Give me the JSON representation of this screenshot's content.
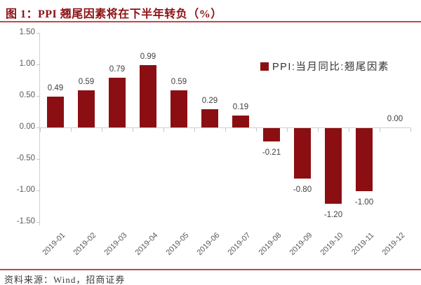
{
  "page": {
    "title": "图 1：PPI 翘尾因素将在下半年转负（%）",
    "source_note": "资料来源：Wind，招商证券"
  },
  "colors": {
    "bar": "#8b0f12",
    "title_red": "#8c1114",
    "rule_red": "#bf4a44",
    "axis_label_gray": "#595959",
    "data_label_gray": "#3f3f3f",
    "axis_line_gray": "#cfcfcf"
  },
  "chart_data": {
    "type": "bar",
    "title": "图 1：PPI 翘尾因素将在下半年转负（%）",
    "categories": [
      "2019-01",
      "2019-02",
      "2019-03",
      "2019-04",
      "2019-05",
      "2019-06",
      "2019-07",
      "2019-08",
      "2019-09",
      "2019-10",
      "2019-11",
      "2019-12"
    ],
    "series": [
      {
        "name": "PPI:当月同比:翘尾因素",
        "values": [
          0.49,
          0.59,
          0.79,
          0.99,
          0.59,
          0.29,
          0.19,
          -0.21,
          -0.8,
          -1.2,
          -1.0,
          0.0
        ]
      }
    ],
    "data_labels": [
      "0.49",
      "0.59",
      "0.79",
      "0.99",
      "0.59",
      "0.29",
      "0.19",
      "-0.21",
      "-0.80",
      "-1.20",
      "-1.00",
      "0.00"
    ],
    "xlabel": "",
    "ylabel": "",
    "ylim": [
      -1.5,
      1.5
    ],
    "ytick_step": 0.5,
    "yticks": [
      "1.50",
      "1.00",
      "0.50",
      "0.00",
      "-0.50",
      "-1.00",
      "-1.50"
    ],
    "grid": false,
    "legend_position": "upper-right",
    "x_tick_label_rotation_deg": 45
  }
}
